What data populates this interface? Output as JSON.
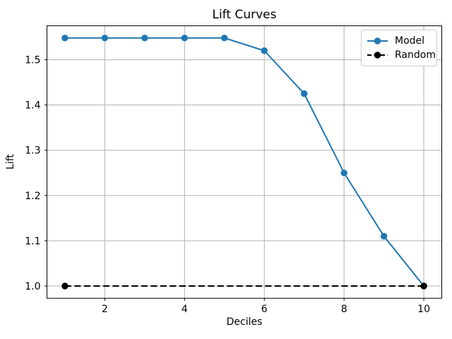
{
  "chart_data": {
    "type": "line",
    "title": "Lift Curves",
    "xlabel": "Deciles",
    "ylabel": "Lift",
    "grid": true,
    "grid_color": "#b0b0b0",
    "axes_color": "#000000",
    "background": "#ffffff",
    "legend_position": "upper right",
    "xlim": [
      0.55,
      10.45
    ],
    "ylim": [
      0.973,
      1.575
    ],
    "xticks": [
      2,
      4,
      6,
      8,
      10
    ],
    "xtick_labels": [
      "2",
      "4",
      "6",
      "8",
      "10"
    ],
    "yticks": [
      1.0,
      1.1,
      1.2,
      1.3,
      1.4,
      1.5
    ],
    "ytick_labels": [
      "1.0",
      "1.1",
      "1.2",
      "1.3",
      "1.4",
      "1.5"
    ],
    "series": [
      {
        "name": "Model",
        "color": "#1f77b4",
        "line_style": "solid",
        "marker": "circle",
        "x": [
          1,
          2,
          3,
          4,
          5,
          6,
          7,
          8,
          9,
          10
        ],
        "values": [
          1.548,
          1.548,
          1.548,
          1.548,
          1.548,
          1.52,
          1.425,
          1.25,
          1.11,
          1.0
        ]
      },
      {
        "name": "Random",
        "color": "#000000",
        "line_style": "dashed",
        "marker": "circle",
        "x": [
          1,
          10
        ],
        "values": [
          1.0,
          1.0
        ]
      }
    ]
  }
}
